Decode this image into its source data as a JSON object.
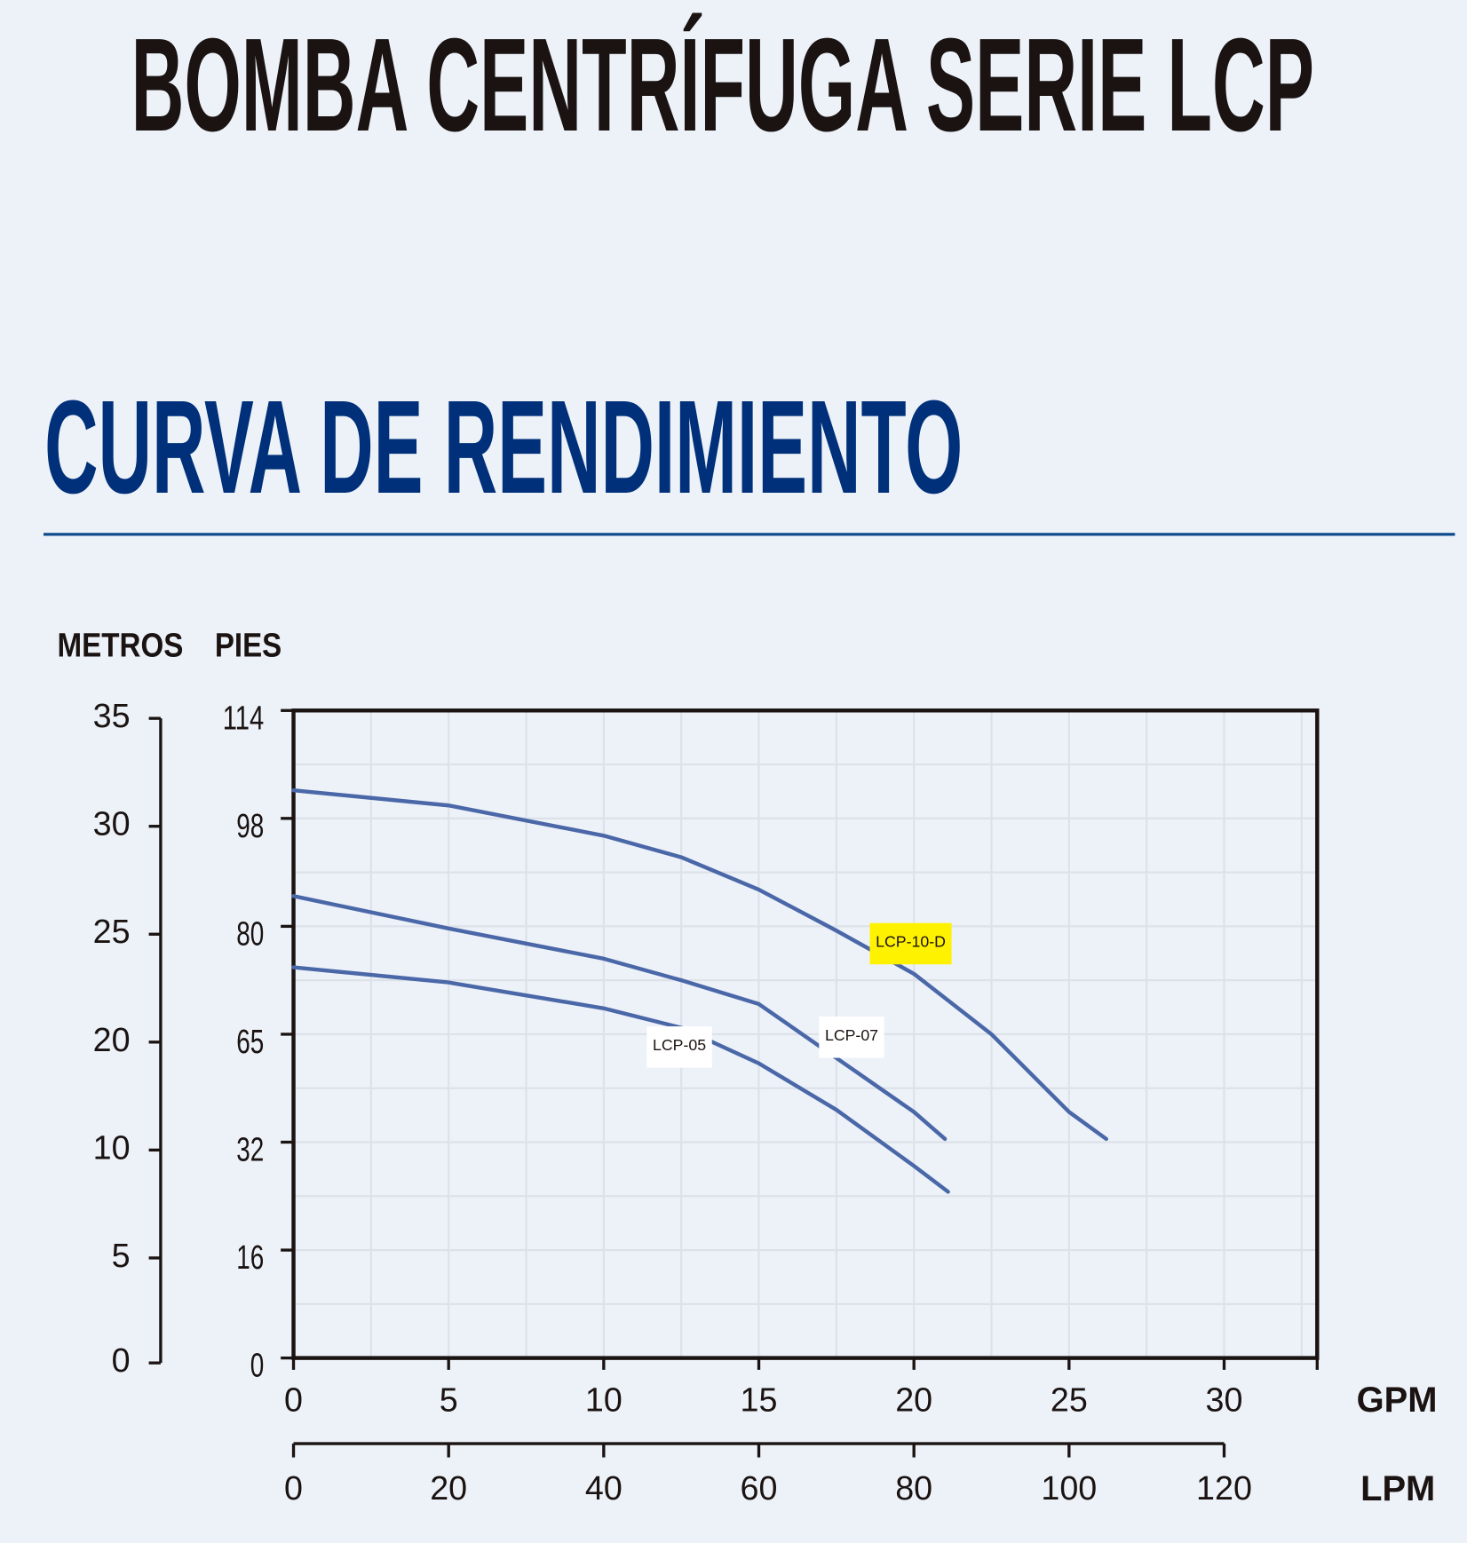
{
  "title": "BOMBA CENTRÍFUGA SERIE LCP",
  "chart_data": {
    "type": "line",
    "title": "CURVA DE RENDIMIENTO",
    "y_label": "METROS",
    "y2_label": "PIES",
    "x_label": "GPM",
    "x2_label": "LPM",
    "xlim": [
      0,
      33
    ],
    "xticks": [
      0,
      5,
      10,
      15,
      20,
      25,
      30
    ],
    "x2lim": [
      0,
      120
    ],
    "x2ticks": [
      0,
      20,
      40,
      60,
      80,
      100,
      120
    ],
    "ylim": [
      0,
      35
    ],
    "yticks": [
      0,
      5,
      10,
      20,
      25,
      30,
      35
    ],
    "y2lim": [
      0,
      114
    ],
    "y2ticks": [
      0,
      16,
      32,
      65,
      80,
      98,
      114
    ],
    "grid": true,
    "series": [
      {
        "name": "LCP-10-D",
        "color": "#4a67a8",
        "highlight": "#fff200",
        "x": [
          0,
          5,
          10,
          12.5,
          15,
          17.5,
          20,
          22.5,
          25,
          26.2
        ],
        "values": [
          31.3,
          30.6,
          29.2,
          28.2,
          26.7,
          24.8,
          22.8,
          20,
          12.8,
          10.3
        ]
      },
      {
        "name": "LCP-07",
        "color": "#4a67a8",
        "highlight": "#ffffff",
        "x": [
          0,
          5,
          10,
          12.5,
          15,
          17.5,
          20,
          21
        ],
        "values": [
          26.4,
          24.9,
          23.5,
          22.5,
          21.4,
          17.8,
          12.8,
          10.3
        ]
      },
      {
        "name": "LCP-05",
        "color": "#4a67a8",
        "highlight": "#ffffff",
        "x": [
          0,
          5,
          10,
          12.5,
          15,
          17.5,
          20,
          21.1
        ],
        "values": [
          23.1,
          22.4,
          21.2,
          20.3,
          17.3,
          13,
          8.9,
          7.7
        ]
      }
    ]
  }
}
